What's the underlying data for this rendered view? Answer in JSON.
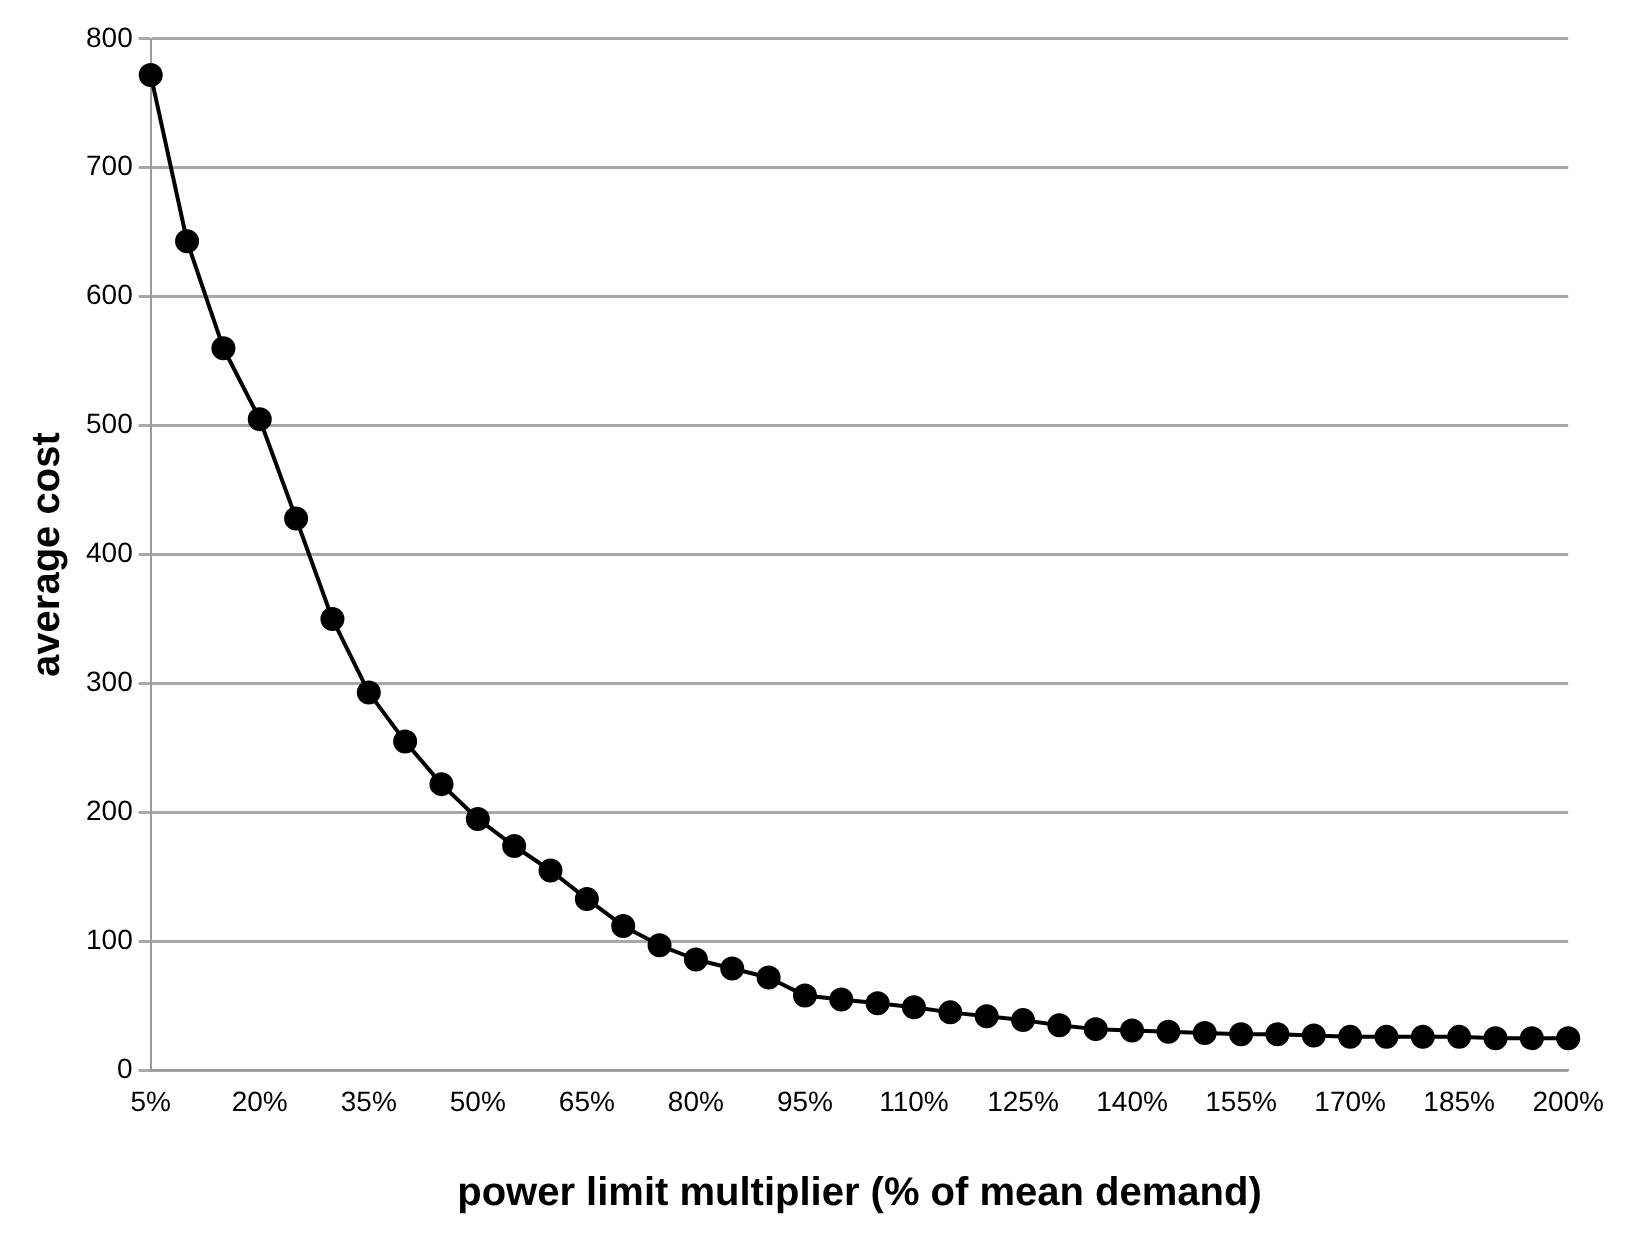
{
  "chart_data": {
    "type": "line",
    "xlabel": "power limit multiplier (% of mean demand)",
    "ylabel": "average cost",
    "categories": [
      "5%",
      null,
      null,
      "20%",
      null,
      null,
      "35%",
      null,
      null,
      "50%",
      null,
      null,
      "65%",
      null,
      null,
      "80%",
      null,
      null,
      "95%",
      null,
      null,
      "110%",
      null,
      null,
      "125%",
      null,
      null,
      "140%",
      null,
      null,
      "155%",
      null,
      null,
      "170%",
      null,
      null,
      "185%",
      null,
      null,
      "200%"
    ],
    "series": [
      {
        "color": "#000000",
        "values": [
          772,
          643,
          560,
          505,
          428,
          350,
          293,
          255,
          222,
          195,
          174,
          155,
          133,
          112,
          97,
          86,
          79,
          72,
          58,
          55,
          52,
          49,
          45,
          42,
          39,
          35,
          32,
          31,
          30,
          29,
          28,
          28,
          27,
          26,
          26,
          26,
          26,
          25,
          25,
          25
        ]
      }
    ],
    "ylim": [
      0,
      800
    ],
    "yticks": [
      0,
      100,
      200,
      300,
      400,
      500,
      600,
      700,
      800
    ],
    "grid": "y",
    "legend": false,
    "marker": "circle",
    "line_style": "solid"
  }
}
